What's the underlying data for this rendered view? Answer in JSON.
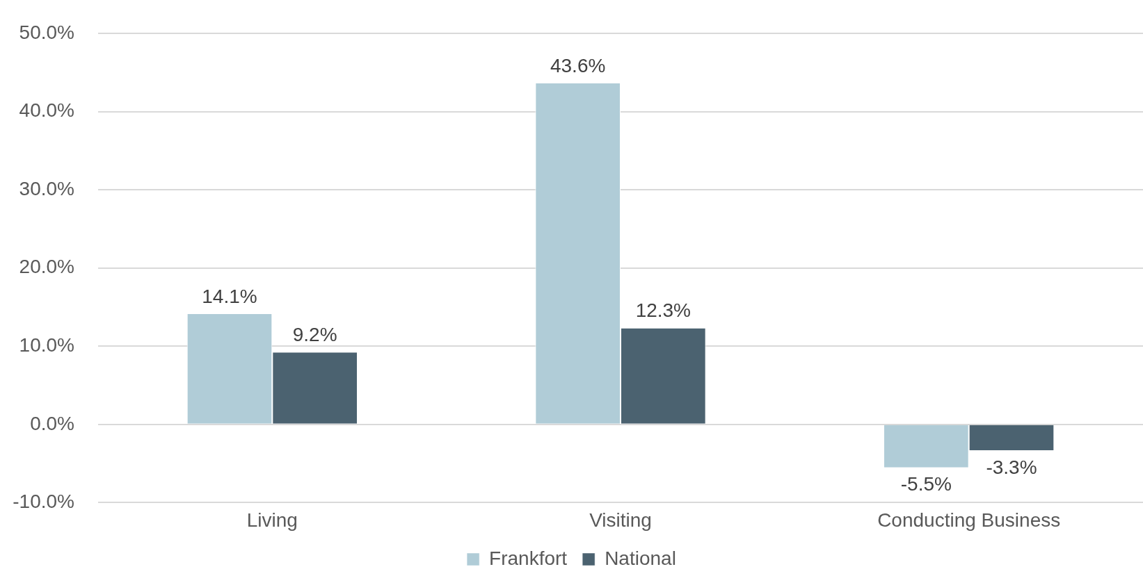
{
  "chart_data": {
    "type": "bar",
    "categories": [
      "Living",
      "Visiting",
      "Conducting Business"
    ],
    "series": [
      {
        "name": "Frankfort",
        "color": "#b0ccd7",
        "values": [
          14.1,
          43.6,
          -5.5
        ],
        "value_labels": [
          "14.1%",
          "43.6%",
          "-5.5%"
        ]
      },
      {
        "name": "National",
        "color": "#4b6270",
        "values": [
          9.2,
          12.3,
          -3.3
        ],
        "value_labels": [
          "9.2%",
          "12.3%",
          "-3.3%"
        ]
      }
    ],
    "ylim": [
      -10,
      50
    ],
    "yticks": [
      {
        "value": -10,
        "label": "-10.0%"
      },
      {
        "value": 0,
        "label": "0.0%"
      },
      {
        "value": 10,
        "label": "10.0%"
      },
      {
        "value": 20,
        "label": "20.0%"
      },
      {
        "value": 30,
        "label": "30.0%"
      },
      {
        "value": 40,
        "label": "40.0%"
      },
      {
        "value": 50,
        "label": "50.0%"
      }
    ],
    "grid": "y",
    "legend": "bottom"
  }
}
